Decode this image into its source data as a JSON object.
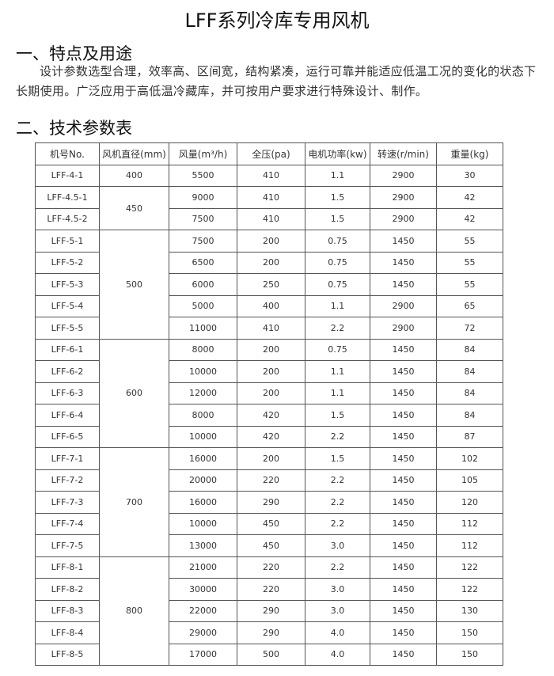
{
  "title": "LFF系列冷库专用风机",
  "section1": {
    "heading": "一、特点及用途",
    "text": "设计参数选型合理，效率高、区间宽，结构紧凑，运行可靠并能适应低温工况的变化的状态下长期使用。广泛应用于高低温冷藏库，并可按用户要求进行特殊设计、制作。"
  },
  "section2": {
    "heading": "二、技术参数表"
  },
  "table": {
    "headers": [
      "机号No.",
      "风机直径(mm)",
      "风量(m³/h)",
      "全压(pa)",
      "电机功率(kw)",
      "转速(r/min)",
      "重量(kg)"
    ],
    "groups": [
      {
        "diameter": "400",
        "rows": [
          [
            "LFF-4-1",
            "5500",
            "410",
            "1.1",
            "2900",
            "30"
          ]
        ]
      },
      {
        "diameter": "450",
        "rows": [
          [
            "LFF-4.5-1",
            "9000",
            "410",
            "1.5",
            "2900",
            "42"
          ],
          [
            "LFF-4.5-2",
            "7500",
            "410",
            "1.5",
            "2900",
            "42"
          ]
        ]
      },
      {
        "diameter": "500",
        "rows": [
          [
            "LFF-5-1",
            "7500",
            "200",
            "0.75",
            "1450",
            "55"
          ],
          [
            "LFF-5-2",
            "6500",
            "200",
            "0.75",
            "1450",
            "55"
          ],
          [
            "LFF-5-3",
            "6000",
            "250",
            "0.75",
            "1450",
            "55"
          ],
          [
            "LFF-5-4",
            "5000",
            "400",
            "1.1",
            "2900",
            "65"
          ],
          [
            "LFF-5-5",
            "11000",
            "410",
            "2.2",
            "2900",
            "72"
          ]
        ]
      },
      {
        "diameter": "600",
        "rows": [
          [
            "LFF-6-1",
            "8000",
            "200",
            "0.75",
            "1450",
            "84"
          ],
          [
            "LFF-6-2",
            "10000",
            "200",
            "1.1",
            "1450",
            "84"
          ],
          [
            "LFF-6-3",
            "12000",
            "200",
            "1.1",
            "1450",
            "84"
          ],
          [
            "LFF-6-4",
            "8000",
            "420",
            "1.5",
            "1450",
            "84"
          ],
          [
            "LFF-6-5",
            "10000",
            "420",
            "2.2",
            "1450",
            "87"
          ]
        ]
      },
      {
        "diameter": "700",
        "rows": [
          [
            "LFF-7-1",
            "16000",
            "200",
            "1.5",
            "1450",
            "102"
          ],
          [
            "LFF-7-2",
            "20000",
            "220",
            "2.2",
            "1450",
            "105"
          ],
          [
            "LFF-7-3",
            "16000",
            "290",
            "2.2",
            "1450",
            "120"
          ],
          [
            "LFF-7-4",
            "10000",
            "450",
            "2.2",
            "1450",
            "112"
          ],
          [
            "LFF-7-5",
            "13000",
            "450",
            "3.0",
            "1450",
            "112"
          ]
        ]
      },
      {
        "diameter": "800",
        "rows": [
          [
            "LFF-8-1",
            "21000",
            "220",
            "2.2",
            "1450",
            "122"
          ],
          [
            "LFF-8-2",
            "30000",
            "220",
            "3.0",
            "1450",
            "122"
          ],
          [
            "LFF-8-3",
            "22000",
            "290",
            "3.0",
            "1450",
            "130"
          ],
          [
            "LFF-8-4",
            "29000",
            "290",
            "4.0",
            "1450",
            "150"
          ],
          [
            "LFF-8-5",
            "17000",
            "500",
            "4.0",
            "1450",
            "150"
          ]
        ]
      }
    ]
  }
}
